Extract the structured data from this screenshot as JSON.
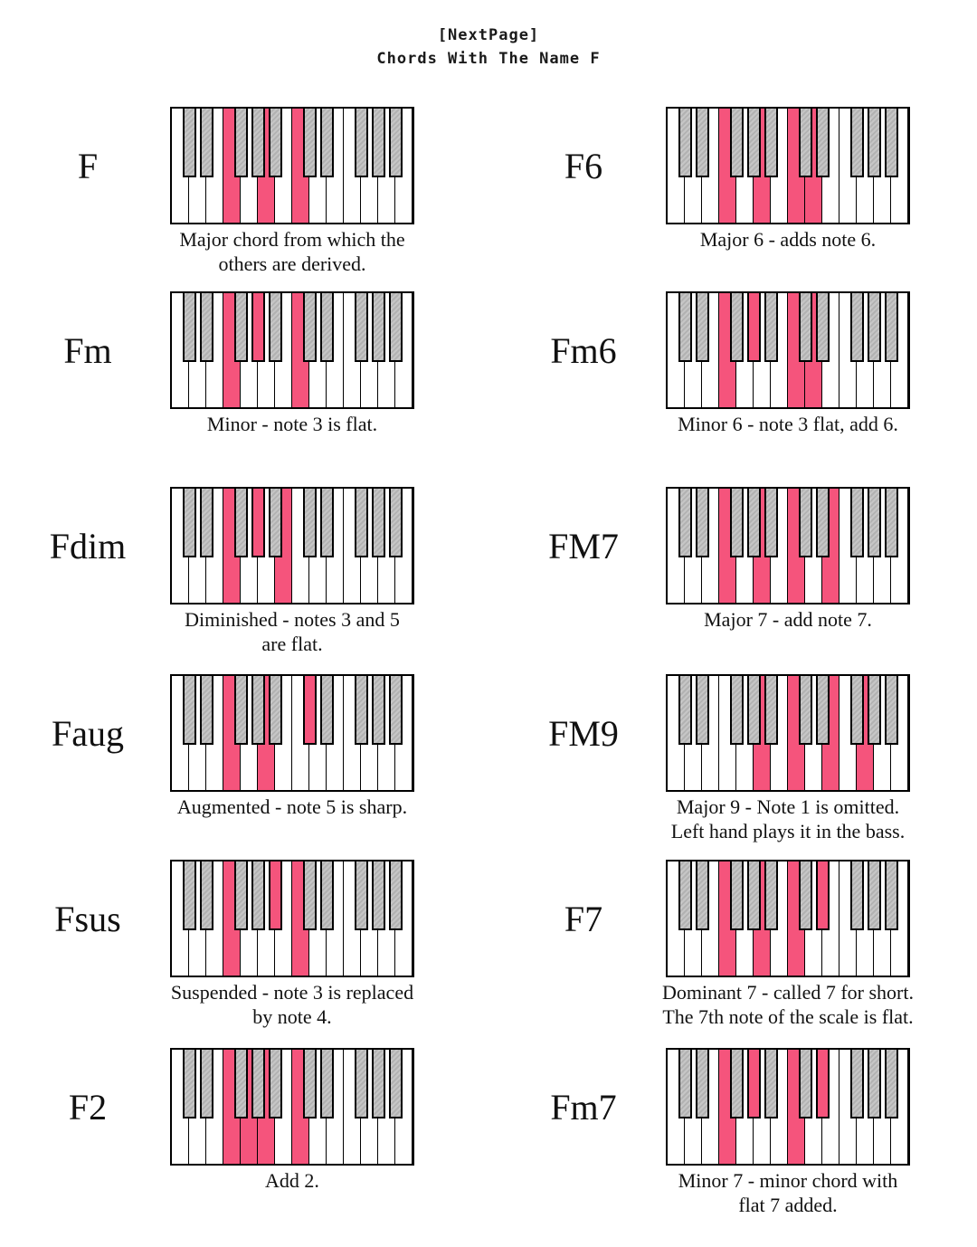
{
  "header": {
    "line1": "[NextPage]",
    "line2": "Chords With The Name F"
  },
  "keyboard": {
    "white_key_count": 14,
    "white_key_notes": [
      "C",
      "D",
      "E",
      "F",
      "G",
      "A",
      "B",
      "C",
      "D",
      "E",
      "F",
      "G",
      "A",
      "B"
    ],
    "black_key_boundaries": [
      1,
      2,
      4,
      5,
      6,
      8,
      9,
      11,
      12,
      13
    ],
    "black_key_notes": [
      "C#",
      "D#",
      "F#",
      "G#",
      "A#",
      "C#",
      "D#",
      "F#",
      "G#",
      "A#"
    ],
    "highlight_color": "#f5547c",
    "black_key_color": "#bcbcbc",
    "outline_color": "#000000"
  },
  "columns": [
    {
      "chords": [
        {
          "name": "F",
          "caption_lines": [
            "Major chord from which the",
            "others are derived."
          ],
          "highlighted_white_keys": [
            3,
            5,
            7
          ],
          "highlighted_black_keys": []
        },
        {
          "name": "Fm",
          "caption_lines": [
            "Minor - note 3 is flat."
          ],
          "highlighted_white_keys": [
            3,
            7
          ],
          "highlighted_black_keys": [
            5
          ]
        },
        {
          "name": "Fdim",
          "caption_lines": [
            "Diminished - notes 3 and 5",
            "are flat."
          ],
          "highlighted_white_keys": [
            3,
            6
          ],
          "highlighted_black_keys": [
            5
          ]
        },
        {
          "name": "Faug",
          "caption_lines": [
            "Augmented - note 5 is sharp."
          ],
          "highlighted_white_keys": [
            3,
            5
          ],
          "highlighted_black_keys": [
            8
          ]
        },
        {
          "name": "Fsus",
          "caption_lines": [
            "Suspended - note 3 is replaced",
            "by note 4."
          ],
          "highlighted_white_keys": [
            3,
            7
          ],
          "highlighted_black_keys": [
            6
          ]
        },
        {
          "name": "F2",
          "caption_lines": [
            "Add 2."
          ],
          "highlighted_white_keys": [
            3,
            4,
            5,
            7
          ],
          "highlighted_black_keys": []
        }
      ]
    },
    {
      "chords": [
        {
          "name": "F6",
          "caption_lines": [
            "Major 6 - adds note 6."
          ],
          "highlighted_white_keys": [
            3,
            5,
            7,
            8
          ],
          "highlighted_black_keys": []
        },
        {
          "name": "Fm6",
          "caption_lines": [
            "Minor 6 - note 3 flat, add 6."
          ],
          "highlighted_white_keys": [
            3,
            7,
            8
          ],
          "highlighted_black_keys": [
            5
          ]
        },
        {
          "name": "FM7",
          "caption_lines": [
            "Major 7 - add note 7."
          ],
          "highlighted_white_keys": [
            3,
            5,
            7,
            9
          ],
          "highlighted_black_keys": []
        },
        {
          "name": "FM9",
          "caption_lines": [
            "Major 9 - Note 1 is omitted.",
            "Left hand plays it in the bass."
          ],
          "highlighted_white_keys": [
            5,
            7,
            9,
            11
          ],
          "highlighted_black_keys": []
        },
        {
          "name": "F7",
          "caption_lines": [
            "Dominant 7 - called 7 for short.",
            "The 7th note of the scale is flat."
          ],
          "highlighted_white_keys": [
            3,
            5,
            7
          ],
          "highlighted_black_keys": [
            9
          ]
        },
        {
          "name": "Fm7",
          "caption_lines": [
            "Minor 7 - minor chord with",
            "flat 7 added."
          ],
          "highlighted_white_keys": [
            3,
            7
          ],
          "highlighted_black_keys": [
            5,
            9
          ]
        }
      ]
    }
  ]
}
